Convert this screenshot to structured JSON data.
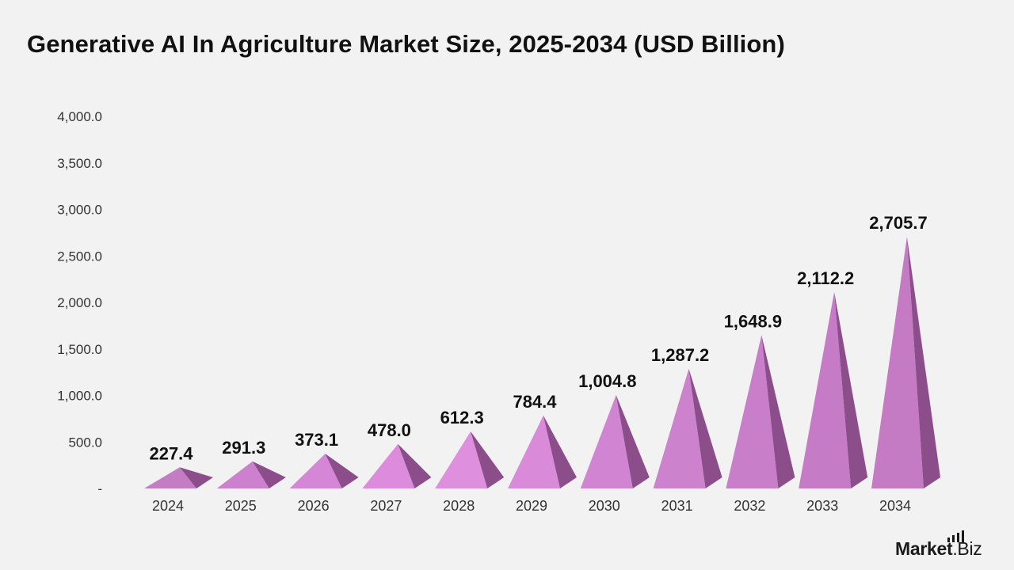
{
  "chart_data": {
    "type": "bar",
    "title": "Generative AI In Agriculture Market Size, 2025-2034 (USD Billion)",
    "xlabel": "",
    "ylabel": "",
    "categories": [
      "2024",
      "2025",
      "2026",
      "2027",
      "2028",
      "2029",
      "2030",
      "2031",
      "2032",
      "2033",
      "2034"
    ],
    "values": [
      227.4,
      291.3,
      373.1,
      478.0,
      612.3,
      784.4,
      1004.8,
      1287.2,
      1648.9,
      2112.2,
      2705.7
    ],
    "data_labels": [
      "227.4",
      "291.3",
      "373.1",
      "478.0",
      "612.3",
      "784.4",
      "1,004.8",
      "1,287.2",
      "1,648.9",
      "2,112.2",
      "2,705.7"
    ],
    "ylim": [
      0,
      4000
    ],
    "yticks": [
      0,
      500,
      1000,
      1500,
      2000,
      2500,
      3000,
      3500,
      4000
    ],
    "ytick_labels": [
      "-",
      "500.0",
      "1,000.0",
      "1,500.0",
      "2,000.0",
      "2,500.0",
      "3,000.0",
      "3,500.0",
      "4,000.0"
    ],
    "grid": false,
    "legend": "none",
    "mark_shape": "pyramid",
    "colors": {
      "front": [
        "#c47cc4",
        "#cd80cd",
        "#d686d6",
        "#dd8cdd",
        "#de90de",
        "#d98ad9",
        "#d184d1",
        "#cc82cc",
        "#c97ec9",
        "#c57bc5",
        "#c47bc4"
      ],
      "side": "#8b4e8b",
      "background": "#f2f2f2"
    }
  },
  "brand": {
    "name": "Market",
    "suffix": ".Biz"
  }
}
